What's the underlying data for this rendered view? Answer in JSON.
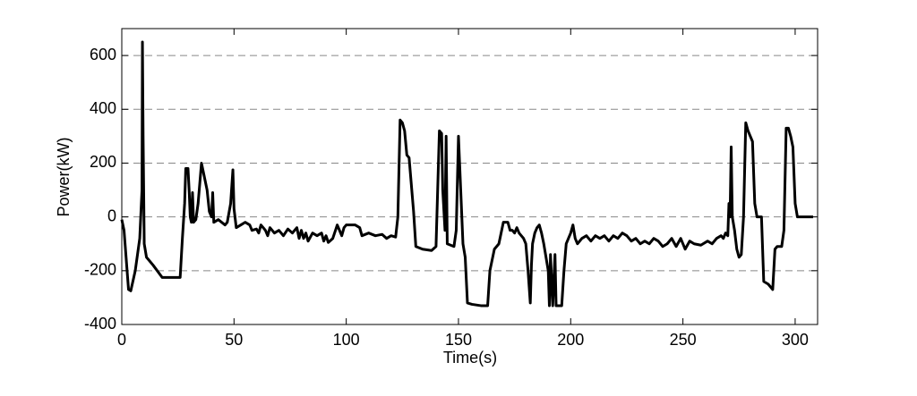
{
  "chart_data": {
    "type": "line",
    "xlabel": "Time(s)",
    "ylabel": "Power(kW)",
    "xlim": [
      0,
      310
    ],
    "ylim": [
      -400,
      700
    ],
    "xticks": [
      0,
      50,
      100,
      150,
      200,
      250,
      300
    ],
    "yticks": [
      -400,
      -200,
      0,
      200,
      400,
      600
    ],
    "grid": true,
    "grid_style": "dashed",
    "color": "#000000",
    "x": [
      0,
      1,
      3,
      4,
      6,
      8,
      9,
      9.2,
      9.5,
      10,
      11,
      14,
      18,
      26,
      27,
      28,
      28.5,
      29.5,
      30,
      30.5,
      31,
      31.5,
      32,
      33,
      34,
      35,
      35.5,
      36.5,
      38,
      39,
      40,
      40.5,
      41,
      43,
      46,
      47,
      48.5,
      49.5,
      50,
      51,
      53,
      55,
      57,
      58,
      60,
      61,
      62,
      64,
      65,
      66,
      68,
      70,
      72,
      74,
      76,
      78,
      79,
      80,
      81,
      82,
      83,
      85,
      87,
      89,
      90,
      91,
      92,
      94,
      96,
      97,
      98,
      99,
      100,
      104,
      106,
      107,
      110,
      113,
      116,
      118,
      120,
      122,
      123,
      124,
      125,
      126,
      127,
      128,
      130,
      131,
      134,
      138,
      140,
      141.5,
      142.5,
      143,
      144,
      144.5,
      145,
      148,
      149,
      150,
      151,
      152,
      153,
      154,
      156,
      160,
      163,
      164,
      166,
      168,
      170,
      172,
      173,
      174,
      175,
      176,
      177,
      179,
      180,
      181,
      182,
      182.5,
      183,
      184,
      185,
      186,
      187,
      188,
      189,
      190,
      190.5,
      191,
      192,
      193,
      193.5,
      196,
      197,
      198,
      199,
      200,
      201,
      202,
      203,
      205,
      207,
      209,
      211,
      213,
      215,
      217,
      219,
      221,
      223,
      225,
      227,
      229,
      231,
      233,
      235,
      237,
      239,
      241,
      243,
      245,
      247,
      249,
      251,
      253,
      255,
      258,
      261,
      263,
      265,
      267,
      268,
      269,
      270,
      270.5,
      271,
      271.5,
      272,
      273,
      274,
      275,
      276,
      277,
      278,
      279,
      281,
      282,
      283,
      285,
      286,
      288,
      290,
      291,
      292,
      294,
      295,
      296,
      297,
      298,
      299,
      300,
      301,
      303,
      308
    ],
    "values": [
      -10,
      -50,
      -270,
      -275,
      -200,
      -80,
      100,
      650,
      300,
      -100,
      -150,
      -180,
      -225,
      -225,
      -80,
      50,
      180,
      180,
      100,
      0,
      -20,
      90,
      -20,
      -10,
      50,
      150,
      200,
      160,
      100,
      20,
      0,
      90,
      -20,
      -10,
      -30,
      -20,
      50,
      175,
      30,
      -40,
      -30,
      -20,
      -30,
      -50,
      -45,
      -60,
      -30,
      -50,
      -70,
      -40,
      -60,
      -50,
      -70,
      -45,
      -60,
      -40,
      -80,
      -50,
      -80,
      -60,
      -90,
      -60,
      -70,
      -60,
      -90,
      -70,
      -95,
      -80,
      -30,
      -50,
      -70,
      -40,
      -30,
      -30,
      -40,
      -70,
      -60,
      -70,
      -65,
      -80,
      -70,
      -75,
      0,
      360,
      350,
      320,
      230,
      220,
      20,
      -110,
      -120,
      -125,
      -110,
      320,
      310,
      100,
      -50,
      300,
      -100,
      -110,
      -50,
      300,
      100,
      -100,
      -150,
      -320,
      -325,
      -330,
      -330,
      -200,
      -120,
      -100,
      -20,
      -20,
      -50,
      -50,
      -60,
      -40,
      -60,
      -80,
      -100,
      -200,
      -320,
      -180,
      -100,
      -60,
      -40,
      -30,
      -60,
      -100,
      -150,
      -200,
      -330,
      -140,
      -330,
      -140,
      -330,
      -330,
      -200,
      -100,
      -80,
      -60,
      -30,
      -80,
      -100,
      -80,
      -70,
      -90,
      -70,
      -80,
      -70,
      -90,
      -70,
      -80,
      -60,
      -70,
      -90,
      -80,
      -100,
      -90,
      -100,
      -80,
      -90,
      -110,
      -100,
      -80,
      -110,
      -80,
      -120,
      -90,
      -100,
      -105,
      -90,
      -100,
      -80,
      -70,
      -80,
      -60,
      -70,
      50,
      0,
      260,
      0,
      -50,
      -120,
      -150,
      -140,
      0,
      350,
      320,
      280,
      50,
      0,
      0,
      -240,
      -250,
      -270,
      -120,
      -110,
      -110,
      -50,
      330,
      330,
      300,
      260,
      50,
      0,
      0,
      0
    ]
  }
}
